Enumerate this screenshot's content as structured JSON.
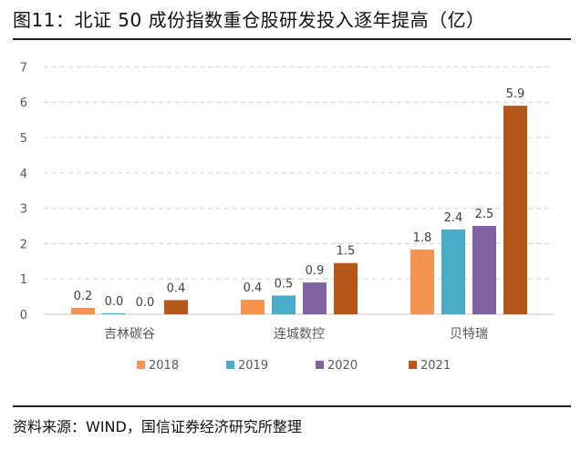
{
  "title": "图11：北证 50 成份指数重仓股研发投入逐年提高（亿）",
  "source": "资料来源：WIND，国信证券经济研究所整理",
  "chart_data": {
    "type": "bar",
    "categories": [
      "吉林碳谷",
      "连城数控",
      "贝特瑞"
    ],
    "series": [
      {
        "name": "2018",
        "color": "#F4944F",
        "values": [
          0.18,
          0.41,
          1.83
        ],
        "labels": [
          "0.2",
          "0.4",
          "1.8"
        ]
      },
      {
        "name": "2019",
        "color": "#4BACC6",
        "values": [
          0.03,
          0.53,
          2.4
        ],
        "labels": [
          "0.0",
          "0.5",
          "2.4"
        ]
      },
      {
        "name": "2020",
        "color": "#8064A2",
        "values": [
          0.0,
          0.9,
          2.5
        ],
        "labels": [
          "0.0",
          "0.9",
          "2.5"
        ]
      },
      {
        "name": "2021",
        "color": "#B5561B",
        "values": [
          0.4,
          1.45,
          5.9
        ],
        "labels": [
          "0.4",
          "1.5",
          "5.9"
        ]
      }
    ],
    "yticks": [
      "0",
      "1",
      "2",
      "3",
      "4",
      "5",
      "6",
      "7"
    ],
    "ylim": [
      0,
      7
    ],
    "grid": true,
    "legend": "bottom"
  }
}
